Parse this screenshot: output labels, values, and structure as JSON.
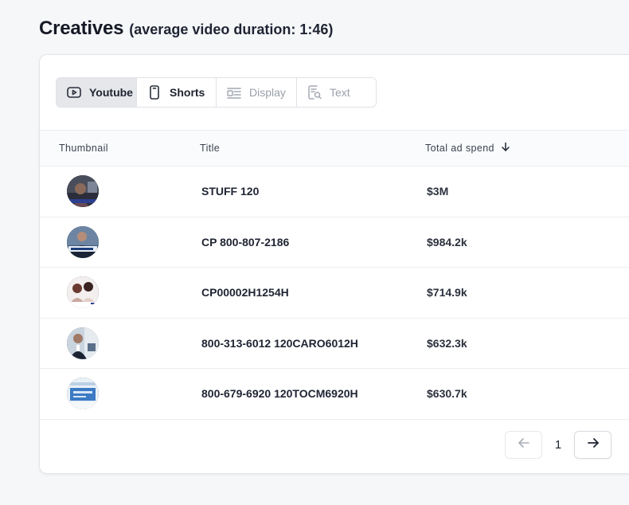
{
  "header": {
    "title": "Creatives",
    "subtitle": "(average video duration: 1:46)"
  },
  "tabs": [
    {
      "label": "Youtube",
      "icon": "play-rect-icon",
      "state": "active"
    },
    {
      "label": "Shorts",
      "icon": "phone-icon",
      "state": "normal"
    },
    {
      "label": "Display",
      "icon": "display-layout-icon",
      "state": "disabled"
    },
    {
      "label": "Text",
      "icon": "text-search-icon",
      "state": "disabled"
    }
  ],
  "table": {
    "columns": {
      "thumbnail": "Thumbnail",
      "title": "Title",
      "spend": "Total ad spend"
    },
    "sort": {
      "column": "spend",
      "direction": "descending",
      "icon": "arrow-down-icon"
    },
    "rows": [
      {
        "title": "STUFF 120",
        "spend": "$3M"
      },
      {
        "title": "CP 800-807-2186",
        "spend": "$984.2k"
      },
      {
        "title": "CP00002H1254H",
        "spend": "$714.9k"
      },
      {
        "title": "800-313-6012 120CARO6012H",
        "spend": "$632.3k"
      },
      {
        "title": "800-679-6920 120TOCM6920H",
        "spend": "$630.7k"
      }
    ]
  },
  "pagination": {
    "current_page": "1",
    "prev_icon": "arrow-left-icon",
    "next_icon": "arrow-right-icon"
  },
  "colors": {
    "active_tab_bg": "#e5e7eb",
    "page_bg": "#f6f7f9",
    "text_primary": "#1f2433",
    "disabled_text": "#9aa0aa"
  }
}
